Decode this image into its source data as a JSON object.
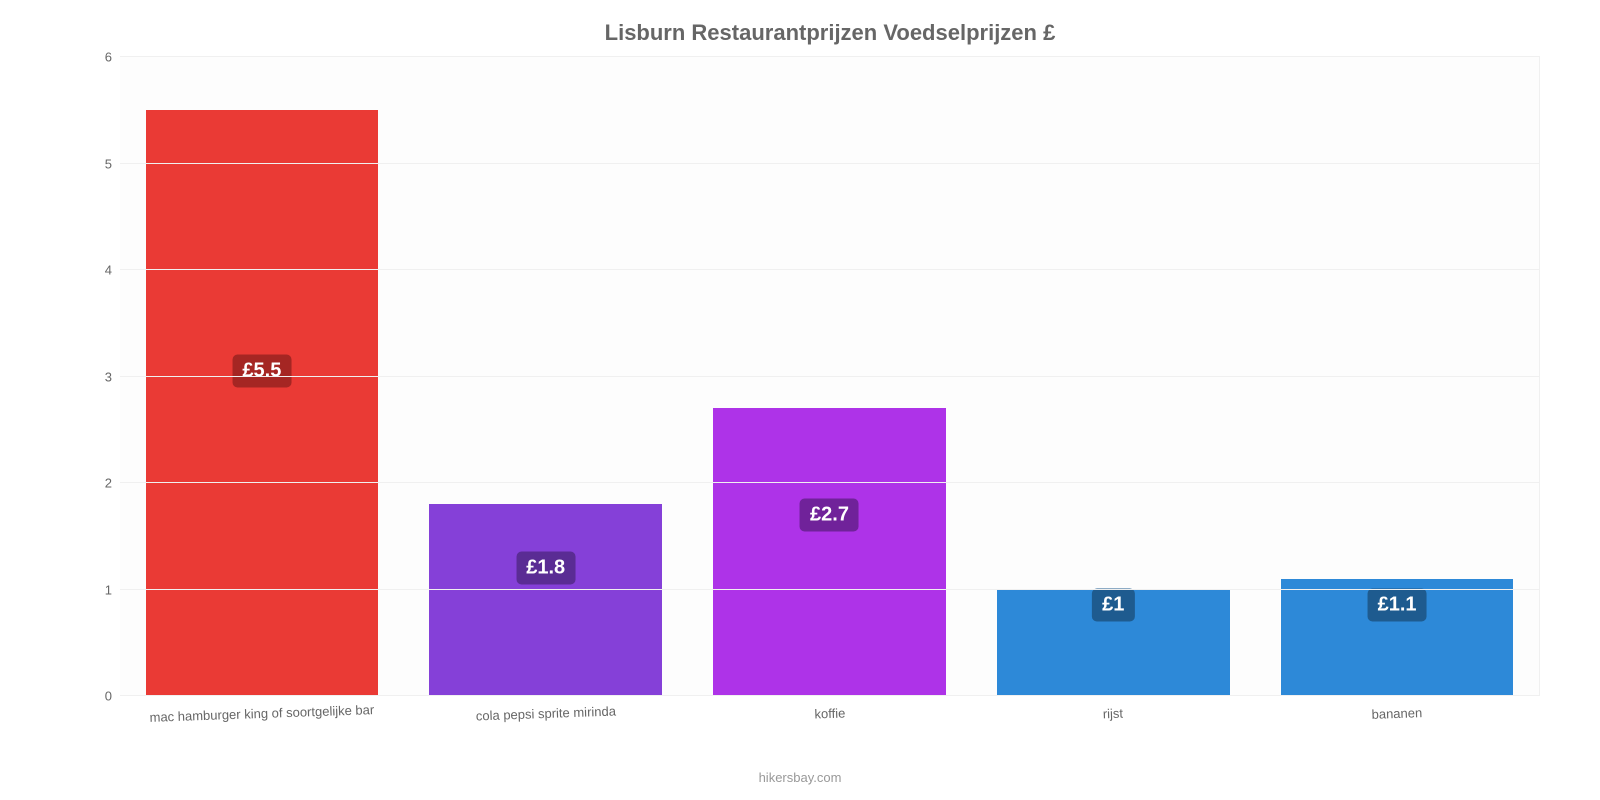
{
  "chart": {
    "type": "bar",
    "title": "Lisburn Restaurantprijzen Voedselprijzen £",
    "title_fontsize": 22,
    "title_color": "#666666",
    "background_color": "#fdfdfd",
    "grid_color": "#f0f0f0",
    "axis_color": "#808080",
    "font_family": "Arial",
    "ylim": [
      0,
      6
    ],
    "ytick_step": 1,
    "yticks": [
      "0",
      "1",
      "2",
      "3",
      "4",
      "5",
      "6"
    ],
    "label_fontsize": 13,
    "label_color": "#666666",
    "bar_width_pct": 82,
    "value_label_fontsize": 20,
    "value_badge_radius": 5,
    "categories": [
      "mac hamburger king of soortgelijke bar",
      "cola pepsi sprite mirinda",
      "koffie",
      "rijst",
      "bananen"
    ],
    "values": [
      5.5,
      1.8,
      2.7,
      1.0,
      1.1
    ],
    "value_labels": [
      "£5.5",
      "£1.8",
      "£2.7",
      "£1",
      "£1.1"
    ],
    "bar_colors": [
      "#ea3a35",
      "#8540d8",
      "#ae33e8",
      "#2d89d8",
      "#2d89d8"
    ],
    "badge_colors": [
      "#a52623",
      "#5a2c94",
      "#70229a",
      "#1e5b8f",
      "#1e5b8f"
    ],
    "attribution": "hikersbay.com",
    "attribution_color": "#999999"
  }
}
